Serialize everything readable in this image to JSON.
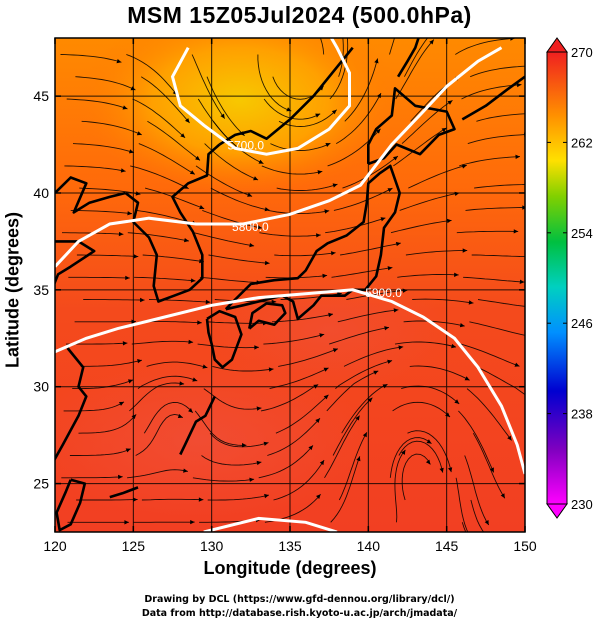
{
  "title": "MSM 15Z05Jul2024 (500.0hPa)",
  "map": {
    "xlabel": "Longitude (degrees)",
    "ylabel": "Latitude  (degrees)",
    "lon_range": [
      120,
      150
    ],
    "lat_range": [
      22.5,
      48
    ],
    "x_ticks": [
      "120",
      "125",
      "130",
      "135",
      "140",
      "145",
      "150"
    ],
    "y_ticks": [
      "25",
      "30",
      "35",
      "40",
      "45"
    ],
    "contours": [
      {
        "label": "5700.0"
      },
      {
        "label": "5800.0"
      },
      {
        "label": "5900.0"
      }
    ],
    "field_colors": {
      "warm": "#f2421f",
      "cool": "#ff7a00",
      "coldest": "#f5c400",
      "contour": "#ffffff"
    },
    "vectors": "streamlines"
  },
  "colorbar": {
    "ticks": [
      "270",
      "262",
      "254",
      "246",
      "238",
      "230"
    ],
    "range": [
      230,
      270
    ]
  },
  "credits": [
    "Drawing by DCL (https://www.gfd-dennou.org/library/dcl/)",
    "Data from http://database.rish.kyoto-u.ac.jp/arch/jmadata/"
  ]
}
